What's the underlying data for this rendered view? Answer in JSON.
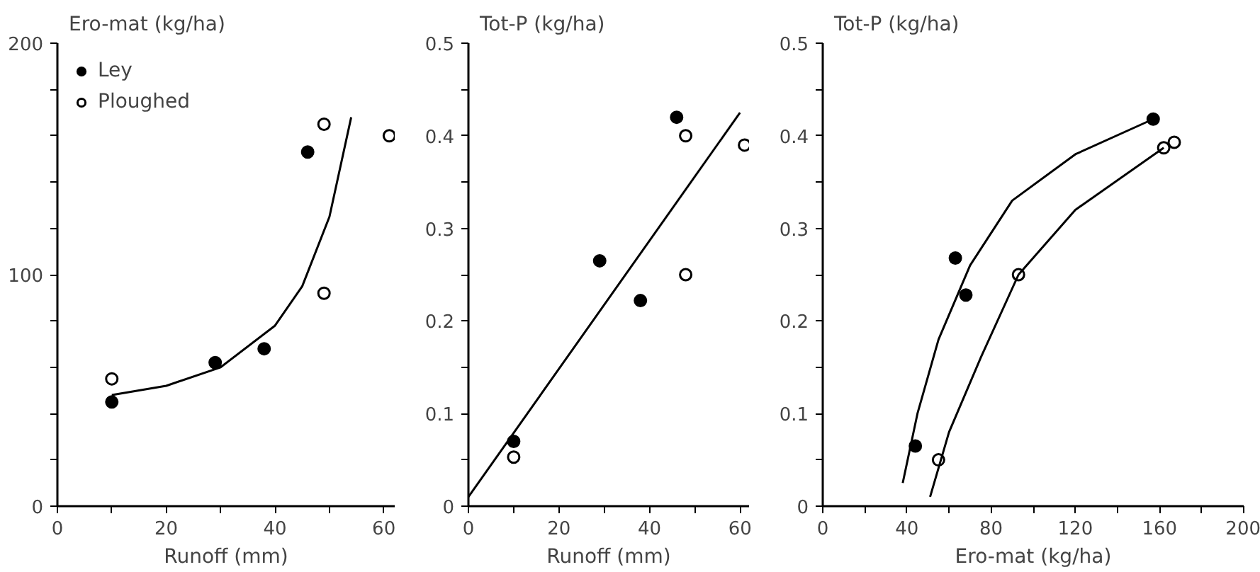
{
  "chart_data": [
    {
      "type": "scatter",
      "ylabel": "Ero-mat (kg/ha)",
      "xlabel": "Runoff (mm)",
      "xlim": [
        0,
        62
      ],
      "ylim": [
        0,
        200
      ],
      "xticks": [
        0,
        {
          "value": 10,
          "label": null
        },
        20,
        {
          "value": 30,
          "label": null
        },
        40,
        {
          "value": 50,
          "label": null
        },
        60
      ],
      "yticks": [
        0,
        {
          "value": 20,
          "label": null
        },
        {
          "value": 40,
          "label": null
        },
        {
          "value": 60,
          "label": null
        },
        {
          "value": 80,
          "label": null
        },
        100,
        {
          "value": 120,
          "label": null
        },
        {
          "value": 140,
          "label": null
        },
        {
          "value": 160,
          "label": null
        },
        {
          "value": 180,
          "label": null
        },
        200
      ],
      "legend": "top left",
      "grid": false,
      "series": [
        {
          "name": "Ley",
          "color": "#000000",
          "marker": "circle",
          "x": [
            10,
            29,
            38,
            46
          ],
          "values": [
            45,
            62,
            68,
            153
          ]
        },
        {
          "name": "Ploughed",
          "color": "#ffffff",
          "marker": "circle",
          "x": [
            10,
            49,
            49,
            61
          ],
          "values": [
            55,
            165,
            92,
            160
          ]
        },
        {
          "type": "line",
          "color": "#000000",
          "marker": "none",
          "x": [
            10,
            20,
            30,
            40,
            45,
            50,
            54
          ],
          "values": [
            48,
            52,
            60,
            78,
            95,
            125,
            168
          ]
        }
      ]
    },
    {
      "type": "scatter",
      "ylabel": "Tot-P (kg/ha)",
      "xlabel": "Runoff (mm)",
      "xlim": [
        0,
        62
      ],
      "ylim": [
        0,
        0.5
      ],
      "xticks": [
        0,
        {
          "value": 10,
          "label": null
        },
        20,
        {
          "value": 30,
          "label": null
        },
        40,
        {
          "value": 50,
          "label": null
        },
        60
      ],
      "yticks": [
        0,
        {
          "value": 0.05,
          "label": null
        },
        0.1,
        {
          "value": 0.15,
          "label": null
        },
        0.2,
        {
          "value": 0.25,
          "label": null
        },
        0.3,
        {
          "value": 0.35,
          "label": null
        },
        0.4,
        {
          "value": 0.45,
          "label": null
        },
        0.5
      ],
      "grid": false,
      "series": [
        {
          "color": "#000000",
          "marker": "circle",
          "x": [
            10,
            29,
            38,
            46
          ],
          "values": [
            0.07,
            0.265,
            0.222,
            0.42
          ]
        },
        {
          "color": "#ffffff",
          "marker": "circle",
          "x": [
            10,
            48,
            48,
            61
          ],
          "values": [
            0.053,
            0.4,
            0.25,
            0.39
          ]
        },
        {
          "type": "line",
          "color": "#000000",
          "marker": "none",
          "x": [
            0,
            60
          ],
          "values": [
            0.01,
            0.425
          ]
        }
      ]
    },
    {
      "type": "scatter",
      "ylabel": "Tot-P (kg/ha)",
      "xlabel": "Ero-mat (kg/ha)",
      "xlim": [
        0,
        200
      ],
      "ylim": [
        0,
        0.5
      ],
      "xticks": [
        0,
        {
          "value": 20,
          "label": null
        },
        40,
        {
          "value": 60,
          "label": null
        },
        80,
        {
          "value": 100,
          "label": null
        },
        120,
        {
          "value": 140,
          "label": null
        },
        160,
        {
          "value": 180,
          "label": null
        },
        200
      ],
      "yticks": [
        0,
        {
          "value": 0.05,
          "label": null
        },
        0.1,
        {
          "value": 0.15,
          "label": null
        },
        0.2,
        {
          "value": 0.25,
          "label": null
        },
        0.3,
        {
          "value": 0.35,
          "label": null
        },
        0.4,
        {
          "value": 0.45,
          "label": null
        },
        0.5
      ],
      "grid": false,
      "series": [
        {
          "color": "#000000",
          "marker": "circle",
          "x": [
            44,
            63,
            68,
            157
          ],
          "values": [
            0.065,
            0.268,
            0.228,
            0.418
          ]
        },
        {
          "color": "#ffffff",
          "marker": "circle",
          "x": [
            55,
            93,
            162,
            167
          ],
          "values": [
            0.05,
            0.25,
            0.387,
            0.393
          ]
        },
        {
          "type": "line",
          "color": "#000000",
          "marker": "none",
          "x": [
            38,
            45,
            55,
            70,
            90,
            120,
            157
          ],
          "values": [
            0.025,
            0.1,
            0.18,
            0.26,
            0.33,
            0.38,
            0.418
          ]
        },
        {
          "type": "line",
          "color": "#000000",
          "marker": "none",
          "x": [
            51,
            60,
            75,
            93,
            120,
            162
          ],
          "values": [
            0.01,
            0.08,
            0.16,
            0.25,
            0.32,
            0.387
          ]
        }
      ]
    }
  ]
}
